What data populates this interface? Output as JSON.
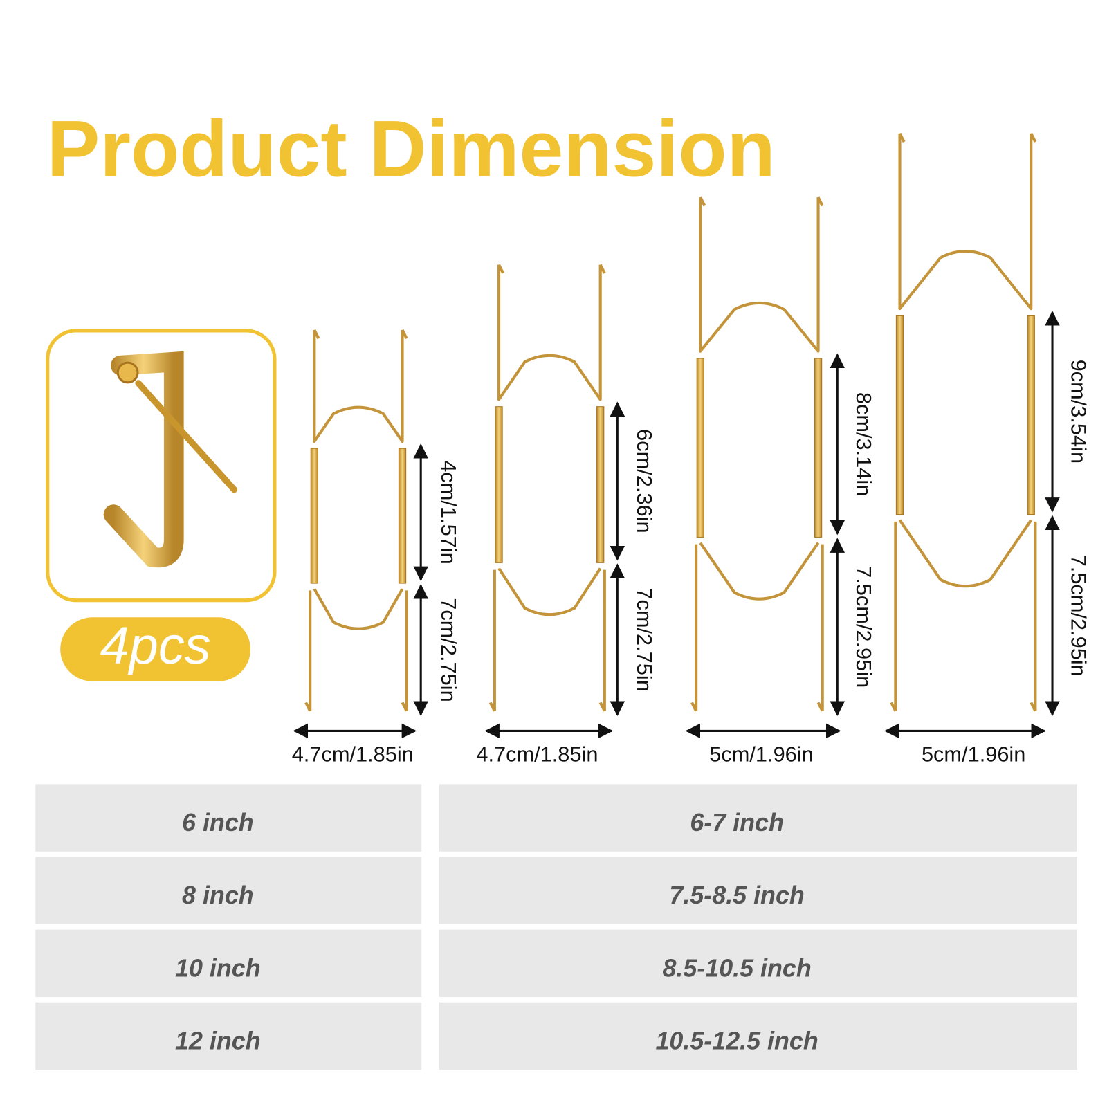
{
  "title": "Product Dimension",
  "badge": "4pcs",
  "hangers": [
    {
      "width": "4.7cm/1.85in",
      "upper": "4cm/1.57in",
      "lower": "7cm/2.75in"
    },
    {
      "width": "4.7cm/1.85in",
      "upper": "6cm/2.36in",
      "lower": "7cm/2.75in"
    },
    {
      "width": "5cm/1.96in",
      "upper": "8cm/3.14in",
      "lower": "7.5cm/2.95in"
    },
    {
      "width": "5cm/1.96in",
      "upper": "9cm/3.54in",
      "lower": "7.5cm/2.95in"
    }
  ],
  "table": {
    "rows": [
      [
        "6 inch",
        "6-7 inch"
      ],
      [
        "8 inch",
        "7.5-8.5 inch"
      ],
      [
        "10 inch",
        "8.5-10.5 inch"
      ],
      [
        "12 inch",
        "10.5-12.5 inch"
      ]
    ]
  }
}
